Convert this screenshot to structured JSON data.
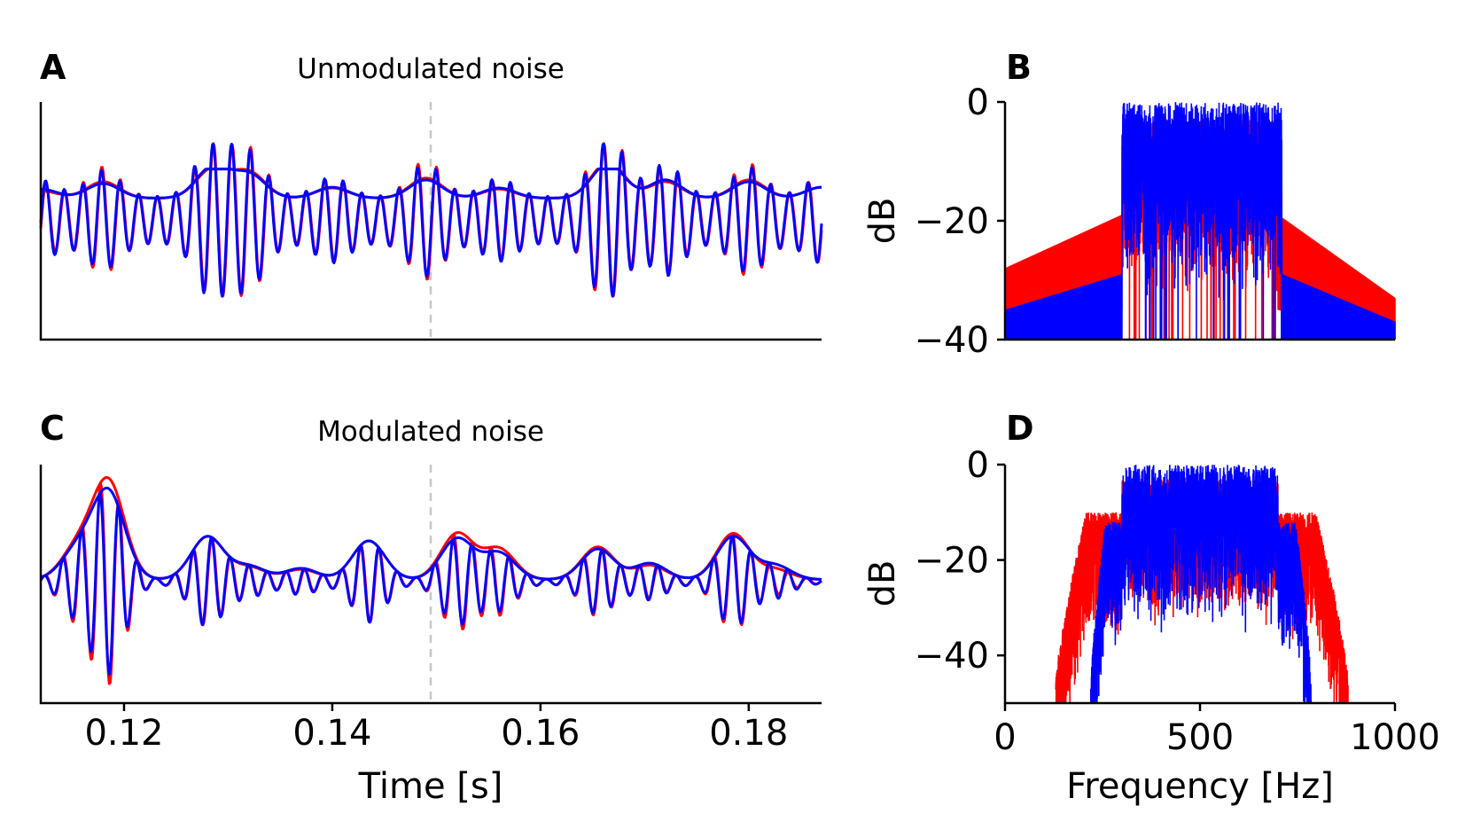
{
  "chart_data": [
    {
      "panel": "A",
      "type": "line",
      "title": "Unmodulated noise",
      "xlabel": "",
      "ylabel": "",
      "xlim": [
        0.112,
        0.187
      ],
      "x_ticks": [],
      "y_ticks": [],
      "vline_x": 0.149,
      "colors": {
        "red": "#ff0000",
        "blue": "#0000ff"
      },
      "series": [
        {
          "color": "red",
          "kind": "fine-structure",
          "x": [
            0.112,
            0.118,
            0.1285,
            0.132,
            0.14,
            0.149,
            0.156,
            0.1665,
            0.172,
            0.18,
            0.187
          ],
          "y": [
            0.2,
            0.45,
            0.8,
            0.7,
            0.28,
            0.55,
            0.25,
            1.0,
            0.45,
            0.5,
            0.3
          ]
        },
        {
          "color": "red",
          "kind": "envelope",
          "x": [
            0.112,
            0.118,
            0.1285,
            0.132,
            0.14,
            0.149,
            0.156,
            0.1665,
            0.172,
            0.18,
            0.187
          ],
          "y": [
            0.2,
            0.45,
            0.8,
            0.7,
            0.28,
            0.55,
            0.25,
            1.0,
            0.45,
            0.5,
            0.3
          ]
        },
        {
          "color": "blue",
          "kind": "fine-structure",
          "x": [
            0.112,
            0.118,
            0.1285,
            0.132,
            0.14,
            0.149,
            0.156,
            0.1665,
            0.172,
            0.18,
            0.187
          ],
          "y": [
            0.25,
            0.4,
            0.85,
            0.65,
            0.3,
            0.5,
            0.28,
            0.95,
            0.5,
            0.45,
            0.3
          ]
        },
        {
          "color": "blue",
          "kind": "envelope",
          "x": [
            0.112,
            0.118,
            0.1285,
            0.132,
            0.14,
            0.149,
            0.156,
            0.1665,
            0.172,
            0.18,
            0.187
          ],
          "y": [
            0.25,
            0.4,
            0.85,
            0.65,
            0.3,
            0.5,
            0.28,
            0.95,
            0.5,
            0.45,
            0.3
          ]
        }
      ]
    },
    {
      "panel": "B",
      "type": "line",
      "title": "",
      "xlabel": "",
      "ylabel": "dB",
      "xlim": [
        0,
        1000
      ],
      "ylim": [
        -40,
        0
      ],
      "x_ticks": [],
      "y_ticks": [
        {
          "value": 0,
          "label": "0"
        },
        {
          "value": -20,
          "label": "−20"
        },
        {
          "value": -40,
          "label": "−40"
        }
      ],
      "series": [
        {
          "color": "red",
          "passband_hz": [
            300,
            700
          ],
          "passband_db": [
            -14,
            -3
          ],
          "skirt_db": {
            "0": -28,
            "300": -19,
            "700": -19,
            "1000": -33
          },
          "floor_db": {
            "0": -35,
            "300": -35,
            "700": -35,
            "1000": -40
          }
        },
        {
          "color": "blue",
          "passband_hz": [
            300,
            710
          ],
          "passband_db": [
            -15,
            0
          ],
          "skirt_db": {
            "0": -35,
            "300": -29,
            "710": -29,
            "1000": -37
          }
        }
      ]
    },
    {
      "panel": "C",
      "type": "line",
      "title": "Modulated noise",
      "xlabel": "",
      "ylabel": "",
      "xlim": [
        0.112,
        0.187
      ],
      "x_ticks": [],
      "y_ticks": [],
      "vline_x": 0.149,
      "series": [
        {
          "color": "red",
          "kind": "fine-structure",
          "x": [
            0.1155,
            0.1185,
            0.128,
            0.132,
            0.137,
            0.1435,
            0.152,
            0.156,
            0.1655,
            0.1705,
            0.1785,
            0.1825
          ],
          "y": [
            0.3,
            0.95,
            0.42,
            0.12,
            0.1,
            0.38,
            0.45,
            0.3,
            0.32,
            0.14,
            0.45,
            0.1
          ]
        },
        {
          "color": "red",
          "kind": "envelope",
          "x": [
            0.1155,
            0.1185,
            0.128,
            0.132,
            0.137,
            0.1435,
            0.152,
            0.156,
            0.1655,
            0.1705,
            0.1785,
            0.1825
          ],
          "y": [
            0.3,
            0.95,
            0.42,
            0.12,
            0.1,
            0.38,
            0.45,
            0.3,
            0.32,
            0.14,
            0.45,
            0.1
          ]
        },
        {
          "color": "blue",
          "kind": "fine-structure",
          "x": [
            0.1155,
            0.1185,
            0.128,
            0.132,
            0.137,
            0.1435,
            0.152,
            0.156,
            0.1655,
            0.1705,
            0.1785,
            0.1825
          ],
          "y": [
            0.28,
            0.85,
            0.42,
            0.13,
            0.11,
            0.38,
            0.4,
            0.26,
            0.3,
            0.16,
            0.42,
            0.14
          ]
        },
        {
          "color": "blue",
          "kind": "envelope",
          "x": [
            0.1155,
            0.1185,
            0.128,
            0.132,
            0.137,
            0.1435,
            0.152,
            0.156,
            0.1655,
            0.1705,
            0.1785,
            0.1825
          ],
          "y": [
            0.28,
            0.85,
            0.42,
            0.13,
            0.11,
            0.38,
            0.4,
            0.26,
            0.3,
            0.16,
            0.42,
            0.14
          ]
        }
      ]
    },
    {
      "panel": "D",
      "type": "line",
      "title": "",
      "xlabel": "Frequency [Hz]",
      "ylabel": "dB",
      "xlim": [
        0,
        1000
      ],
      "ylim": [
        -50,
        0
      ],
      "x_ticks": [
        {
          "value": 0,
          "label": "0"
        },
        {
          "value": 500,
          "label": "500"
        },
        {
          "value": 1000,
          "label": "1000"
        }
      ],
      "y_ticks": [
        {
          "value": 0,
          "label": "0"
        },
        {
          "value": -20,
          "label": "−20"
        },
        {
          "value": -40,
          "label": "−40"
        }
      ],
      "series": [
        {
          "color": "red",
          "band_hz": [
            130,
            880
          ],
          "plateau_hz": [
            300,
            700
          ],
          "plateau_db": [
            -12,
            -3
          ],
          "shoulder_db": -15
        },
        {
          "color": "blue",
          "band_hz": [
            220,
            785
          ],
          "plateau_hz": [
            300,
            700
          ],
          "plateau_db": [
            -14,
            0
          ],
          "shoulder_db": -17
        }
      ]
    }
  ],
  "bottom_left_axis": {
    "xlabel": "Time [s]",
    "x_ticks": [
      {
        "value": 0.12,
        "label": "0.12"
      },
      {
        "value": 0.14,
        "label": "0.14"
      },
      {
        "value": 0.16,
        "label": "0.16"
      },
      {
        "value": 0.18,
        "label": "0.18"
      }
    ]
  }
}
